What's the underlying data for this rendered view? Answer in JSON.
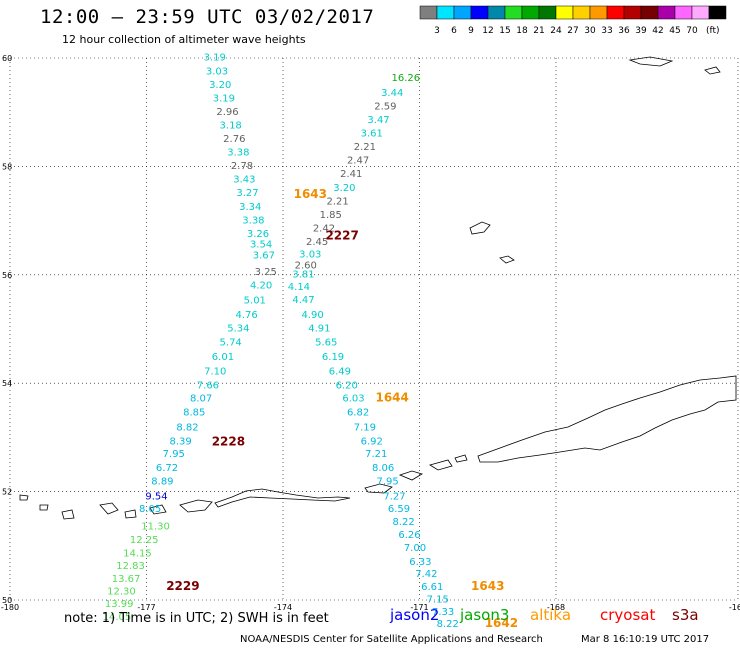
{
  "header": {
    "title": "12:00 – 23:59 UTC 03/02/2017",
    "subtitle": "12 hour collection of altimeter wave heights"
  },
  "colorbar": {
    "unit": "(ft)",
    "bins": [
      {
        "color": "#7f7f7f",
        "label": ""
      },
      {
        "color": "#00e5ff",
        "label": "3"
      },
      {
        "color": "#00a5ff",
        "label": "6"
      },
      {
        "color": "#0000ff",
        "label": "9"
      },
      {
        "color": "#0088aa",
        "label": "12"
      },
      {
        "color": "#22dd22",
        "label": "15"
      },
      {
        "color": "#00a800",
        "label": "18"
      },
      {
        "color": "#007700",
        "label": "21"
      },
      {
        "color": "#ffff00",
        "label": "24"
      },
      {
        "color": "#ffd000",
        "label": "27"
      },
      {
        "color": "#ff9900",
        "label": "30"
      },
      {
        "color": "#ff0000",
        "label": "33"
      },
      {
        "color": "#b30000",
        "label": "36"
      },
      {
        "color": "#770000",
        "label": "39"
      },
      {
        "color": "#aa00aa",
        "label": "42"
      },
      {
        "color": "#ff66ff",
        "label": "45"
      },
      {
        "color": "#ffaaff",
        "label": "70"
      },
      {
        "color": "#000000",
        "label": ""
      }
    ]
  },
  "map": {
    "lat_range": [
      50,
      60
    ],
    "lon_range": [
      -180,
      -164
    ],
    "lat_labels": [
      "60",
      "58",
      "56",
      "54",
      "52",
      "50"
    ],
    "lon_labels": [
      "-180",
      "-177",
      "-174",
      "-171",
      "-168",
      "-164"
    ],
    "grid": "dotted",
    "colors": {
      "cyan": "#00cccc",
      "gray": "#606060",
      "lightcyan": "#00b8e0",
      "blue": "#0000cc",
      "green": "#55dd55",
      "orange": "#f08c00",
      "darkred": "#7a0000",
      "deepgreen": "#11aa11"
    },
    "tracks": [
      {
        "time_label": "",
        "time_color": "",
        "points": [
          {
            "lat": 59.95,
            "lon": -175.5,
            "v": "3.19",
            "c": "cyan"
          },
          {
            "lat": 59.7,
            "lon": -175.45,
            "v": "3.03",
            "c": "cyan"
          },
          {
            "lat": 59.45,
            "lon": -175.38,
            "v": "3.20",
            "c": "cyan"
          },
          {
            "lat": 59.2,
            "lon": -175.3,
            "v": "3.19",
            "c": "cyan"
          },
          {
            "lat": 58.95,
            "lon": -175.22,
            "v": "2.96",
            "c": "gray"
          },
          {
            "lat": 58.7,
            "lon": -175.15,
            "v": "3.18",
            "c": "cyan"
          },
          {
            "lat": 58.45,
            "lon": -175.07,
            "v": "2.76",
            "c": "gray"
          },
          {
            "lat": 58.2,
            "lon": -174.98,
            "v": "3.38",
            "c": "cyan"
          },
          {
            "lat": 57.95,
            "lon": -174.9,
            "v": "2.78",
            "c": "gray"
          },
          {
            "lat": 57.7,
            "lon": -174.85,
            "v": "3.43",
            "c": "cyan"
          },
          {
            "lat": 57.45,
            "lon": -174.78,
            "v": "3.27",
            "c": "cyan"
          },
          {
            "lat": 57.2,
            "lon": -174.72,
            "v": "3.34",
            "c": "cyan"
          },
          {
            "lat": 56.95,
            "lon": -174.65,
            "v": "3.38",
            "c": "cyan"
          },
          {
            "lat": 56.7,
            "lon": -174.55,
            "v": "3.26",
            "c": "cyan"
          },
          {
            "lat": 56.5,
            "lon": -174.48,
            "v": "3.54",
            "c": "cyan"
          },
          {
            "lat": 56.3,
            "lon": -174.42,
            "v": "3.67",
            "c": "cyan"
          },
          {
            "lat": 56.0,
            "lon": -174.38,
            "v": "3.25",
            "c": "gray"
          },
          {
            "lat": 55.75,
            "lon": -174.48,
            "v": "4.20",
            "c": "cyan"
          },
          {
            "lat": 55.47,
            "lon": -174.62,
            "v": "5.01",
            "c": "cyan"
          },
          {
            "lat": 55.2,
            "lon": -174.8,
            "v": "4.76",
            "c": "cyan"
          },
          {
            "lat": 54.95,
            "lon": -174.98,
            "v": "5.34",
            "c": "cyan"
          },
          {
            "lat": 54.7,
            "lon": -175.15,
            "v": "5.74",
            "c": "cyan"
          },
          {
            "lat": 54.43,
            "lon": -175.32,
            "v": "6.01",
            "c": "cyan"
          },
          {
            "lat": 54.16,
            "lon": -175.49,
            "v": "7.10",
            "c": "cyan"
          },
          {
            "lat": 53.9,
            "lon": -175.65,
            "v": "7.66",
            "c": "cyan"
          },
          {
            "lat": 53.66,
            "lon": -175.8,
            "v": "8.07",
            "c": "lightcyan"
          },
          {
            "lat": 53.4,
            "lon": -175.95,
            "v": "8.85",
            "c": "lightcyan"
          },
          {
            "lat": 53.13,
            "lon": -176.1,
            "v": "8.82",
            "c": "lightcyan"
          },
          {
            "lat": 52.87,
            "lon": -176.25,
            "v": "8.39",
            "c": "lightcyan"
          },
          {
            "lat": 52.64,
            "lon": -176.4,
            "v": "7.95",
            "c": "lightcyan"
          },
          {
            "lat": 52.38,
            "lon": -176.55,
            "v": "6.72",
            "c": "lightcyan"
          },
          {
            "lat": 52.13,
            "lon": -176.65,
            "v": "8.89",
            "c": "lightcyan"
          },
          {
            "lat": 51.85,
            "lon": -176.78,
            "v": "9.54",
            "c": "blue"
          },
          {
            "lat": 51.62,
            "lon": -176.92,
            "v": "8.05",
            "c": "lightcyan"
          }
        ]
      },
      {
        "time_label": "2228",
        "time_color": "darkred",
        "label_lat": 52.85,
        "label_lon": -175.2,
        "points": []
      },
      {
        "time_label": "2229",
        "time_color": "darkred",
        "label_lat": 50.18,
        "label_lon": -176.2,
        "points": [
          {
            "lat": 51.3,
            "lon": -176.8,
            "v": "11.30",
            "c": "green"
          },
          {
            "lat": 51.05,
            "lon": -177.05,
            "v": "12.25",
            "c": "green"
          },
          {
            "lat": 50.8,
            "lon": -177.2,
            "v": "14.15",
            "c": "green"
          },
          {
            "lat": 50.57,
            "lon": -177.35,
            "v": "12.83",
            "c": "green"
          },
          {
            "lat": 50.33,
            "lon": -177.45,
            "v": "13.67",
            "c": "green"
          },
          {
            "lat": 50.1,
            "lon": -177.55,
            "v": "12.30",
            "c": "green"
          },
          {
            "lat": 49.87,
            "lon": -177.6,
            "v": "13.99",
            "c": "green"
          },
          {
            "lat": 49.63,
            "lon": -177.65,
            "v": "14.05",
            "c": "green"
          }
        ]
      },
      {
        "time_label": "1643",
        "time_color": "orange",
        "label_lat": 57.42,
        "label_lon": -173.4,
        "points": []
      },
      {
        "time_label": "2227",
        "time_color": "darkred",
        "label_lat": 56.65,
        "label_lon": -172.7,
        "points": [
          {
            "lat": 59.58,
            "lon": -171.3,
            "v": "16.26",
            "c": "deepgreen"
          },
          {
            "lat": 59.3,
            "lon": -171.6,
            "v": "3.44",
            "c": "cyan"
          },
          {
            "lat": 59.05,
            "lon": -171.75,
            "v": "2.59",
            "c": "gray"
          },
          {
            "lat": 58.8,
            "lon": -171.9,
            "v": "3.47",
            "c": "cyan"
          },
          {
            "lat": 58.55,
            "lon": -172.05,
            "v": "3.61",
            "c": "cyan"
          },
          {
            "lat": 58.3,
            "lon": -172.2,
            "v": "2.21",
            "c": "gray"
          },
          {
            "lat": 58.05,
            "lon": -172.35,
            "v": "2.47",
            "c": "gray"
          },
          {
            "lat": 57.8,
            "lon": -172.5,
            "v": "2.41",
            "c": "gray"
          },
          {
            "lat": 57.55,
            "lon": -172.65,
            "v": "3.20",
            "c": "cyan"
          },
          {
            "lat": 57.3,
            "lon": -172.8,
            "v": "2.21",
            "c": "gray"
          },
          {
            "lat": 57.05,
            "lon": -172.95,
            "v": "1.85",
            "c": "gray"
          },
          {
            "lat": 56.8,
            "lon": -173.1,
            "v": "2.42",
            "c": "gray"
          },
          {
            "lat": 56.55,
            "lon": -173.25,
            "v": "2.45",
            "c": "gray"
          },
          {
            "lat": 56.32,
            "lon": -173.4,
            "v": "3.03",
            "c": "cyan"
          },
          {
            "lat": 56.12,
            "lon": -173.5,
            "v": "2.60",
            "c": "gray"
          },
          {
            "lat": 55.95,
            "lon": -173.55,
            "v": "3.81",
            "c": "cyan"
          },
          {
            "lat": 55.72,
            "lon": -173.65,
            "v": "4.14",
            "c": "cyan"
          },
          {
            "lat": 55.48,
            "lon": -173.55,
            "v": "4.47",
            "c": "cyan"
          },
          {
            "lat": 55.2,
            "lon": -173.35,
            "v": "4.90",
            "c": "cyan"
          },
          {
            "lat": 54.95,
            "lon": -173.2,
            "v": "4.91",
            "c": "cyan"
          },
          {
            "lat": 54.7,
            "lon": -173.05,
            "v": "5.65",
            "c": "cyan"
          },
          {
            "lat": 54.43,
            "lon": -172.9,
            "v": "6.19",
            "c": "cyan"
          },
          {
            "lat": 54.16,
            "lon": -172.75,
            "v": "6.49",
            "c": "cyan"
          },
          {
            "lat": 53.9,
            "lon": -172.6,
            "v": "6.20",
            "c": "cyan"
          },
          {
            "lat": 53.66,
            "lon": -172.45,
            "v": "6.03",
            "c": "cyan"
          }
        ]
      },
      {
        "time_label": "1644",
        "time_color": "orange",
        "label_lat": 53.66,
        "label_lon": -171.6,
        "points": [
          {
            "lat": 53.4,
            "lon": -172.35,
            "v": "6.82",
            "c": "lightcyan"
          },
          {
            "lat": 53.13,
            "lon": -172.2,
            "v": "7.19",
            "c": "lightcyan"
          },
          {
            "lat": 52.87,
            "lon": -172.05,
            "v": "6.92",
            "c": "lightcyan"
          },
          {
            "lat": 52.64,
            "lon": -171.95,
            "v": "7.21",
            "c": "lightcyan"
          },
          {
            "lat": 52.38,
            "lon": -171.8,
            "v": "8.06",
            "c": "lightcyan"
          },
          {
            "lat": 52.13,
            "lon": -171.7,
            "v": "7.95",
            "c": "lightcyan"
          },
          {
            "lat": 51.85,
            "lon": -171.55,
            "v": "7.27",
            "c": "lightcyan"
          },
          {
            "lat": 51.62,
            "lon": -171.45,
            "v": "6.59",
            "c": "lightcyan"
          },
          {
            "lat": 51.38,
            "lon": -171.35,
            "v": "8.22",
            "c": "lightcyan"
          },
          {
            "lat": 51.14,
            "lon": -171.22,
            "v": "6.26",
            "c": "lightcyan"
          },
          {
            "lat": 50.9,
            "lon": -171.1,
            "v": "7.00",
            "c": "lightcyan"
          },
          {
            "lat": 50.65,
            "lon": -170.98,
            "v": "6.33",
            "c": "lightcyan"
          },
          {
            "lat": 50.42,
            "lon": -170.85,
            "v": "7.42",
            "c": "lightcyan"
          }
        ]
      },
      {
        "time_label": "1643",
        "time_color": "orange",
        "label_lat": 50.18,
        "label_lon": -169.5,
        "points": [
          {
            "lat": 50.18,
            "lon": -170.72,
            "v": "6.61",
            "c": "lightcyan"
          },
          {
            "lat": 49.95,
            "lon": -170.6,
            "v": "7.15",
            "c": "lightcyan"
          },
          {
            "lat": 49.72,
            "lon": -170.48,
            "v": "7.33",
            "c": "lightcyan"
          },
          {
            "lat": 49.5,
            "lon": -170.38,
            "v": "8.22",
            "c": "lightcyan"
          }
        ]
      },
      {
        "time_label": "1642",
        "time_color": "orange",
        "label_lat": 49.5,
        "label_lon": -169.2,
        "points": []
      }
    ]
  },
  "legend": [
    {
      "name": "jason2",
      "color": "#0000ff"
    },
    {
      "name": "jason3",
      "color": "#00aa00"
    },
    {
      "name": "altika",
      "color": "#ff9900"
    },
    {
      "name": "cryosat",
      "color": "#ff0000"
    },
    {
      "name": "s3a",
      "color": "#7a0000"
    }
  ],
  "footer": {
    "note": "note: 1) Time is in UTC; 2) SWH is in feet",
    "credit": "NOAA/NESDIS Center for Satellite Applications and Research",
    "timestamp": "Mar  8 16:10:19 UTC 2017"
  }
}
